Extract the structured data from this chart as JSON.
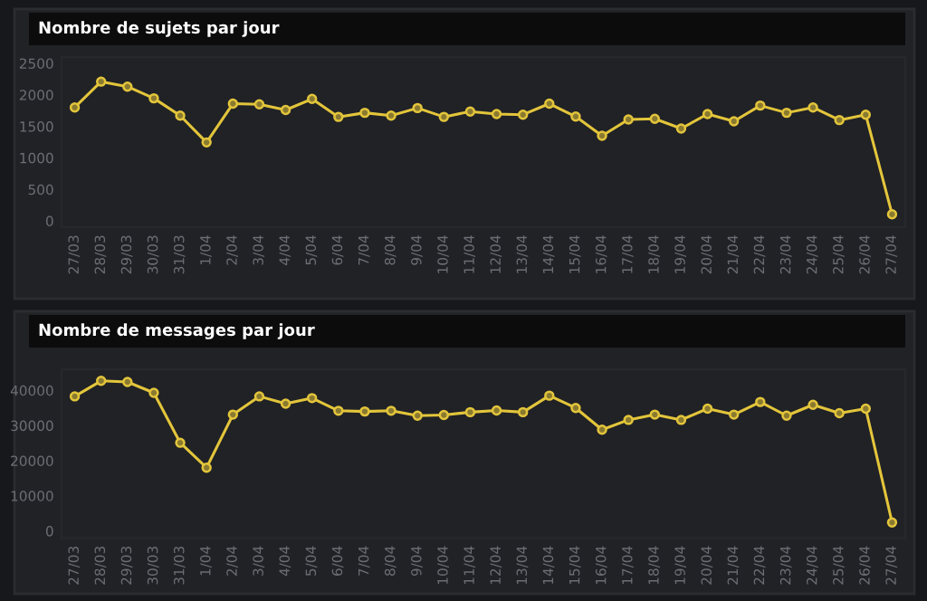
{
  "chart_data": [
    {
      "type": "line",
      "title": "Nombre de sujets par jour",
      "categories": [
        "27/03",
        "28/03",
        "29/03",
        "30/03",
        "31/03",
        "1/04",
        "2/04",
        "3/04",
        "4/04",
        "5/04",
        "6/04",
        "7/04",
        "8/04",
        "9/04",
        "10/04",
        "11/04",
        "12/04",
        "13/04",
        "14/04",
        "15/04",
        "16/04",
        "17/04",
        "18/04",
        "19/04",
        "20/04",
        "21/04",
        "22/04",
        "23/04",
        "24/04",
        "25/04",
        "26/04",
        "27/04"
      ],
      "series": [
        {
          "color": "#e3c53b",
          "values": [
            1800,
            2210,
            2130,
            1945,
            1670,
            1245,
            1860,
            1850,
            1760,
            1935,
            1650,
            1715,
            1670,
            1790,
            1650,
            1735,
            1695,
            1685,
            1860,
            1655,
            1350,
            1610,
            1620,
            1465,
            1695,
            1580,
            1830,
            1715,
            1800,
            1600,
            1685,
            105
          ]
        }
      ],
      "ylim": [
        -100,
        2600
      ],
      "yticks": [
        0,
        500,
        1000,
        1500,
        2000,
        2500
      ],
      "grid": false,
      "legend": false,
      "marker": "circle",
      "line_style": "solid"
    },
    {
      "type": "line",
      "title": "Nombre de messages par jour",
      "categories": [
        "27/03",
        "28/03",
        "29/03",
        "30/03",
        "31/03",
        "1/04",
        "2/04",
        "3/04",
        "4/04",
        "5/04",
        "6/04",
        "7/04",
        "8/04",
        "9/04",
        "10/04",
        "11/04",
        "12/04",
        "13/04",
        "14/04",
        "15/04",
        "16/04",
        "17/04",
        "18/04",
        "19/04",
        "20/04",
        "21/04",
        "22/04",
        "23/04",
        "24/04",
        "25/04",
        "26/04",
        "27/04"
      ],
      "series": [
        {
          "color": "#e3c53b",
          "values": [
            38300,
            42700,
            42400,
            39300,
            25100,
            18000,
            33100,
            38300,
            36200,
            37800,
            34200,
            34000,
            34200,
            32800,
            33000,
            33800,
            34300,
            33800,
            38500,
            35000,
            28800,
            31600,
            33100,
            31600,
            34800,
            33100,
            36700,
            32800,
            35900,
            33500,
            34800,
            2400
          ]
        }
      ],
      "ylim": [
        -2000,
        46000
      ],
      "yticks": [
        0,
        10000,
        20000,
        30000,
        40000
      ],
      "grid": false,
      "legend": false,
      "marker": "circle",
      "line_style": "solid"
    }
  ]
}
